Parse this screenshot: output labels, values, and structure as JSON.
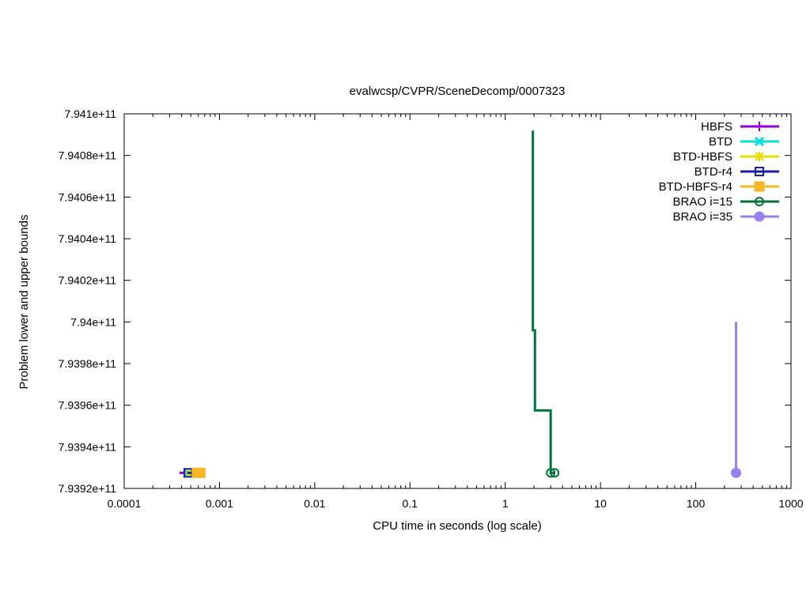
{
  "chart_data": {
    "type": "line",
    "title": "evalwcsp/CVPR/SceneDecomp/0007323",
    "xlabel": "CPU time in seconds (log scale)",
    "ylabel": "Problem lower and upper bounds",
    "x_scale": "log",
    "xlim": [
      0.0001,
      1000
    ],
    "ylim": [
      793920000000,
      794100000000
    ],
    "grid": false,
    "legend_position": "top-right",
    "x_ticks": [
      {
        "value": 0.0001,
        "label": "0.0001"
      },
      {
        "value": 0.001,
        "label": "0.001"
      },
      {
        "value": 0.01,
        "label": "0.01"
      },
      {
        "value": 0.1,
        "label": "0.1"
      },
      {
        "value": 1,
        "label": "1"
      },
      {
        "value": 10,
        "label": "10"
      },
      {
        "value": 100,
        "label": "100"
      },
      {
        "value": 1000,
        "label": "1000"
      }
    ],
    "y_ticks": [
      {
        "value": 793920000000,
        "label": "7.9392e+11"
      },
      {
        "value": 793940000000,
        "label": "7.9394e+11"
      },
      {
        "value": 793960000000,
        "label": "7.9396e+11"
      },
      {
        "value": 793980000000,
        "label": "7.9398e+11"
      },
      {
        "value": 794000000000,
        "label": "7.94e+11"
      },
      {
        "value": 794020000000,
        "label": "7.9402e+11"
      },
      {
        "value": 794040000000,
        "label": "7.9404e+11"
      },
      {
        "value": 794060000000,
        "label": "7.9406e+11"
      },
      {
        "value": 794080000000,
        "label": "7.9408e+11"
      },
      {
        "value": 794100000000,
        "label": "7.941e+11"
      }
    ],
    "series": [
      {
        "name": "HBFS",
        "color": "#9400d3",
        "marker": "plus",
        "points": [
          [
            0.00038,
            793927500000
          ],
          [
            0.00045,
            793927500000
          ]
        ],
        "markers": [
          [
            0.00043,
            793927500000
          ]
        ]
      },
      {
        "name": "BTD",
        "color": "#00e0e0",
        "marker": "cross",
        "points": [
          [
            0.00045,
            793927500000
          ],
          [
            0.0005,
            793927500000
          ]
        ],
        "markers": [
          [
            0.00047,
            793927500000
          ]
        ]
      },
      {
        "name": "BTD-HBFS",
        "color": "#e0e000",
        "marker": "star",
        "points": [
          [
            0.00046,
            793927500000
          ],
          [
            0.00052,
            793927500000
          ]
        ],
        "markers": [
          [
            0.00049,
            793927500000
          ]
        ]
      },
      {
        "name": "BTD-r4",
        "color": "#1c1caa",
        "marker": "square-open",
        "points": [
          [
            0.00046,
            793927500000
          ],
          [
            0.00052,
            793927500000
          ]
        ],
        "markers": [
          [
            0.00047,
            793927500000
          ]
        ]
      },
      {
        "name": "BTD-HBFS-r4",
        "color": "#f8b824",
        "marker": "square-filled",
        "points": [
          [
            0.00052,
            793927500000
          ],
          [
            0.00065,
            793927500000
          ]
        ],
        "markers": [
          [
            0.00058,
            793927500000
          ],
          [
            0.00063,
            793927500000
          ]
        ]
      },
      {
        "name": "BRAO i=15",
        "color": "#007339",
        "marker": "circle-open",
        "points": [
          [
            1.95,
            794092000000
          ],
          [
            1.95,
            793996000000
          ],
          [
            2.05,
            793996000000
          ],
          [
            2.05,
            793957500000
          ],
          [
            3.0,
            793957500000
          ],
          [
            3.0,
            793927500000
          ],
          [
            3.3,
            793927500000
          ]
        ],
        "markers": [
          [
            3.0,
            793927500000
          ],
          [
            3.3,
            793927500000
          ]
        ]
      },
      {
        "name": "BRAO i=35",
        "color": "#9a80ee",
        "marker": "circle-filled",
        "points": [
          [
            265,
            794000000000
          ],
          [
            265,
            793927500000
          ]
        ],
        "markers": [
          [
            265,
            793927500000
          ]
        ]
      }
    ]
  }
}
